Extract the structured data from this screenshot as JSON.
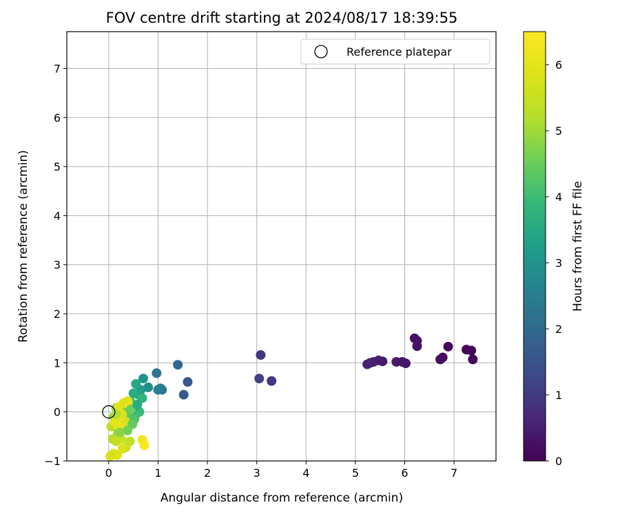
{
  "chart_data": {
    "type": "scatter",
    "title": "FOV centre drift starting at 2024/08/17 18:39:55",
    "xlabel": "Angular distance from reference (arcmin)",
    "ylabel": "Rotation from reference (arcmin)",
    "xlim": [
      -0.85,
      7.85
    ],
    "ylim": [
      -1.0,
      7.75
    ],
    "xticks": [
      0,
      1,
      2,
      3,
      4,
      5,
      6,
      7
    ],
    "yticks": [
      -1,
      0,
      1,
      2,
      3,
      4,
      5,
      6,
      7
    ],
    "grid": true,
    "legend": {
      "position": "top-right",
      "entries": [
        "Reference platepar"
      ]
    },
    "reference_point": {
      "x": 0,
      "y": 0
    },
    "colorbar": {
      "label": "Hours from first FF file",
      "min": 0,
      "max": 6.5,
      "ticks": [
        0,
        1,
        2,
        3,
        4,
        5,
        6
      ],
      "colormap": "viridis"
    },
    "points": [
      {
        "x": 7.38,
        "y": 1.07,
        "c": 0.05
      },
      {
        "x": 7.35,
        "y": 1.25,
        "c": 0.08
      },
      {
        "x": 7.25,
        "y": 1.27,
        "c": 0.1
      },
      {
        "x": 6.88,
        "y": 1.33,
        "c": 0.15
      },
      {
        "x": 6.77,
        "y": 1.11,
        "c": 0.18
      },
      {
        "x": 6.72,
        "y": 1.07,
        "c": 0.2
      },
      {
        "x": 6.25,
        "y": 1.45,
        "c": 0.25
      },
      {
        "x": 6.2,
        "y": 1.5,
        "c": 0.28
      },
      {
        "x": 6.25,
        "y": 1.34,
        "c": 0.3
      },
      {
        "x": 6.02,
        "y": 0.99,
        "c": 0.33
      },
      {
        "x": 5.95,
        "y": 1.02,
        "c": 0.36
      },
      {
        "x": 5.83,
        "y": 1.02,
        "c": 0.4
      },
      {
        "x": 5.55,
        "y": 1.03,
        "c": 0.43
      },
      {
        "x": 5.47,
        "y": 1.05,
        "c": 0.46
      },
      {
        "x": 5.37,
        "y": 1.02,
        "c": 0.5
      },
      {
        "x": 5.3,
        "y": 1.0,
        "c": 0.53
      },
      {
        "x": 5.24,
        "y": 0.97,
        "c": 0.56
      },
      {
        "x": 3.08,
        "y": 1.16,
        "c": 0.9
      },
      {
        "x": 3.3,
        "y": 0.63,
        "c": 1.0
      },
      {
        "x": 3.05,
        "y": 0.68,
        "c": 1.1
      },
      {
        "x": 1.6,
        "y": 0.61,
        "c": 1.6
      },
      {
        "x": 1.52,
        "y": 0.35,
        "c": 1.7
      },
      {
        "x": 1.4,
        "y": 0.96,
        "c": 1.9
      },
      {
        "x": 1.08,
        "y": 0.45,
        "c": 2.2
      },
      {
        "x": 1.05,
        "y": 0.48,
        "c": 2.4
      },
      {
        "x": 1.0,
        "y": 0.45,
        "c": 2.5
      },
      {
        "x": 0.97,
        "y": 0.79,
        "c": 2.3
      },
      {
        "x": 0.8,
        "y": 0.5,
        "c": 2.8
      },
      {
        "x": 0.7,
        "y": 0.68,
        "c": 3.0
      },
      {
        "x": 0.65,
        "y": 0.45,
        "c": 3.2
      },
      {
        "x": 0.55,
        "y": 0.57,
        "c": 3.5
      },
      {
        "x": 0.6,
        "y": 0.35,
        "c": 3.4
      },
      {
        "x": 0.5,
        "y": 0.38,
        "c": 3.6
      },
      {
        "x": 0.68,
        "y": 0.28,
        "c": 3.8
      },
      {
        "x": 0.62,
        "y": 0.0,
        "c": 3.9
      },
      {
        "x": 0.55,
        "y": -0.05,
        "c": 4.0
      },
      {
        "x": 0.45,
        "y": 0.2,
        "c": 4.1
      },
      {
        "x": 0.5,
        "y": 0.05,
        "c": 3.7
      },
      {
        "x": 0.4,
        "y": 0.0,
        "c": 4.2
      },
      {
        "x": 0.35,
        "y": -0.08,
        "c": 4.3
      },
      {
        "x": 0.3,
        "y": 0.1,
        "c": 4.4
      },
      {
        "x": 0.28,
        "y": -0.2,
        "c": 4.5
      },
      {
        "x": 0.25,
        "y": 0.02,
        "c": 4.6
      },
      {
        "x": 0.2,
        "y": -0.15,
        "c": 4.7
      },
      {
        "x": 0.15,
        "y": 0.08,
        "c": 4.8
      },
      {
        "x": 0.12,
        "y": -0.3,
        "c": 4.9
      },
      {
        "x": 0.1,
        "y": -0.1,
        "c": 5.0
      },
      {
        "x": 0.18,
        "y": -0.45,
        "c": 5.1
      },
      {
        "x": 0.08,
        "y": -0.55,
        "c": 5.2
      },
      {
        "x": 0.05,
        "y": -0.3,
        "c": 5.3
      },
      {
        "x": 0.15,
        "y": -0.6,
        "c": 5.4
      },
      {
        "x": 0.25,
        "y": -0.55,
        "c": 5.5
      },
      {
        "x": 0.3,
        "y": -0.35,
        "c": 5.6
      },
      {
        "x": 0.35,
        "y": -0.2,
        "c": 5.7
      },
      {
        "x": 0.3,
        "y": 0.18,
        "c": 5.8
      },
      {
        "x": 0.38,
        "y": 0.22,
        "c": 5.9
      },
      {
        "x": 0.42,
        "y": 0.13,
        "c": 6.0
      },
      {
        "x": 0.2,
        "y": 0.1,
        "c": 5.95
      },
      {
        "x": 0.22,
        "y": -0.1,
        "c": 6.05
      },
      {
        "x": 0.35,
        "y": -0.72,
        "c": 5.6
      },
      {
        "x": 0.43,
        "y": -0.6,
        "c": 5.4
      },
      {
        "x": 0.28,
        "y": -0.75,
        "c": 5.8
      },
      {
        "x": 0.17,
        "y": -0.88,
        "c": 5.9
      },
      {
        "x": 0.1,
        "y": -0.85,
        "c": 5.85
      },
      {
        "x": 0.03,
        "y": -0.9,
        "c": 5.75
      },
      {
        "x": 0.2,
        "y": -0.28,
        "c": 6.1
      },
      {
        "x": 0.12,
        "y": -0.2,
        "c": 6.0
      },
      {
        "x": 0.27,
        "y": -0.05,
        "c": 5.9
      },
      {
        "x": 0.68,
        "y": -0.57,
        "c": 6.3
      },
      {
        "x": 0.72,
        "y": -0.68,
        "c": 6.45
      },
      {
        "x": 0.45,
        "y": 0.05,
        "c": 4.5
      },
      {
        "x": 0.52,
        "y": -0.15,
        "c": 4.2
      },
      {
        "x": 0.38,
        "y": -0.38,
        "c": 4.6
      },
      {
        "x": 0.22,
        "y": -0.42,
        "c": 4.8
      },
      {
        "x": 0.58,
        "y": 0.15,
        "c": 3.6
      },
      {
        "x": 0.48,
        "y": -0.25,
        "c": 4.4
      },
      {
        "x": 0.15,
        "y": -0.05,
        "c": 5.2
      }
    ]
  }
}
